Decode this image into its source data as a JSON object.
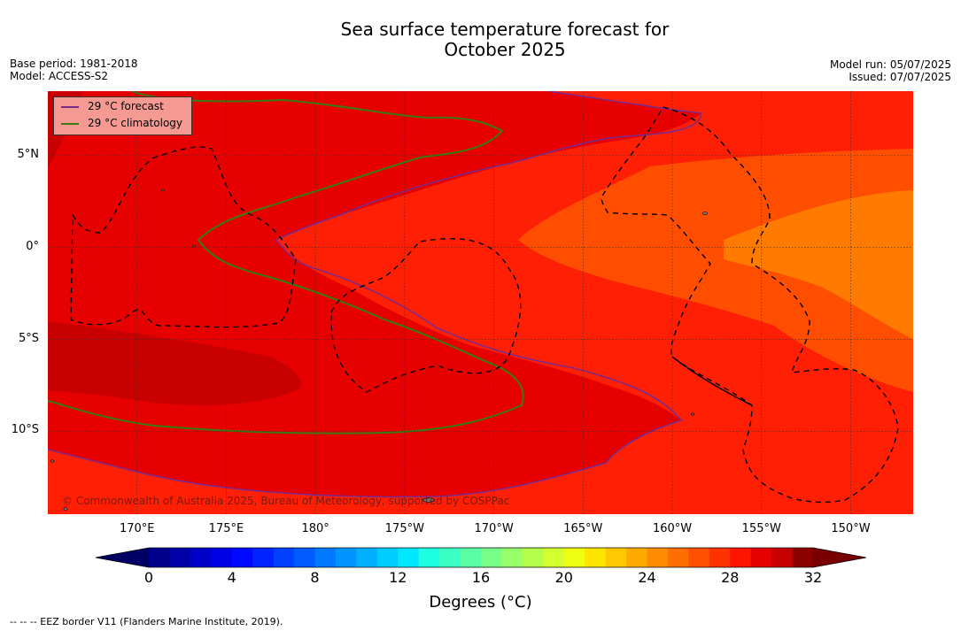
{
  "title": {
    "line1": "Sea surface temperature forecast for",
    "line2": "October 2025"
  },
  "meta": {
    "base_period": "Base period: 1981-2018",
    "model": "Model: ACCESS-S2",
    "model_run": "Model run: 05/07/2025",
    "issued": "Issued: 07/07/2025"
  },
  "legend": {
    "forecast": "29 °C  forecast",
    "climatology": "29 °C  climatology",
    "forecast_color": "#7b2a8c",
    "climatology_color": "#3a7a10"
  },
  "copyright": "© Commonwealth of Australia 2025, Bureau of Meteorology, supported by COSPPac",
  "footer": "--  --  -- EEZ border V11 (Flanders Marine Institute, 2019).",
  "chart_data": {
    "type": "heatmap",
    "lat_labels": [
      "5°N",
      "0°",
      "5°S",
      "10°S"
    ],
    "lat_values": [
      5,
      0,
      -5,
      -10
    ],
    "lon_labels": [
      "170°E",
      "175°E",
      "180°",
      "175°W",
      "170°W",
      "165°W",
      "160°W",
      "155°W",
      "150°W"
    ],
    "lon_values": [
      170,
      175,
      180,
      185,
      190,
      195,
      200,
      205,
      210
    ],
    "lon_range": [
      165,
      213.5
    ],
    "lat_range": [
      -14.5,
      8.5
    ],
    "grid": true,
    "legend_position": "top-left",
    "regions": [
      {
        "name": "background",
        "temp_range": "28-29",
        "color": "#ff1f05"
      },
      {
        "name": "warm-pool",
        "temp_range": "29-30",
        "color": "#e60000"
      },
      {
        "name": "warm-core",
        "temp_range": "30-31",
        "color": "#c80000"
      },
      {
        "name": "east-cool",
        "temp_range": "27-28",
        "color": "#ff4e00"
      },
      {
        "name": "east-coolest",
        "temp_range": "26-27",
        "color": "#ff7b00"
      }
    ],
    "colorbar": {
      "min": 0,
      "max": 32,
      "step": 1,
      "ticks": [
        0,
        4,
        8,
        12,
        16,
        20,
        24,
        28,
        32
      ],
      "label": "Degrees ( $^\\circ$C)",
      "label_text": "Degrees (°C)",
      "colors": [
        "#00008c",
        "#0000a8",
        "#0000c8",
        "#0000e6",
        "#0008ff",
        "#0024ff",
        "#0040ff",
        "#005cff",
        "#0078ff",
        "#0094ff",
        "#00b0ff",
        "#00ccff",
        "#00e8ff",
        "#1effe1",
        "#3cffc3",
        "#5affa5",
        "#78ff87",
        "#96ff69",
        "#b4ff4b",
        "#d2ff2d",
        "#f0ff0f",
        "#ffe600",
        "#ffc800",
        "#ffaa00",
        "#ff8c00",
        "#ff6e00",
        "#ff5000",
        "#ff3200",
        "#ff1400",
        "#e60000",
        "#c80000",
        "#8c0000"
      ],
      "below_color": "#000064",
      "above_color": "#780000"
    }
  }
}
